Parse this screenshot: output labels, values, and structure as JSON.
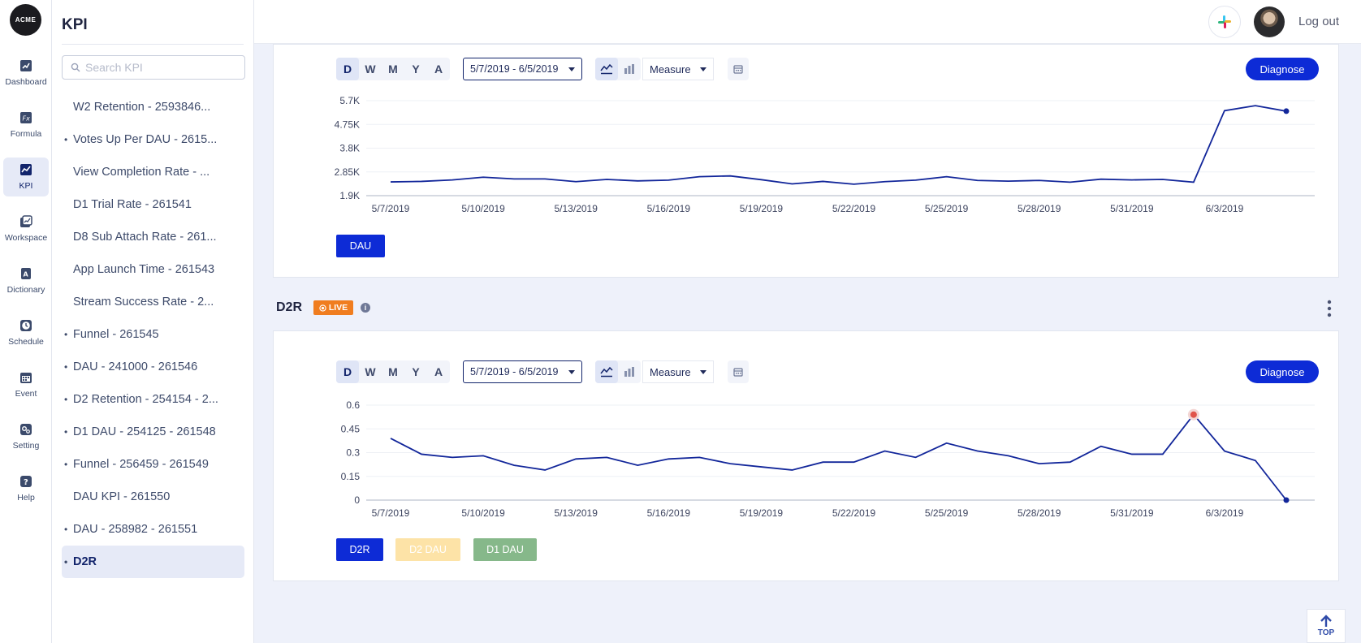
{
  "app": {
    "logo_text": "ACME",
    "nav": [
      {
        "label": "Dashboard",
        "icon": "dashboard-icon"
      },
      {
        "label": "Formula",
        "icon": "formula-icon"
      },
      {
        "label": "KPI",
        "icon": "kpi-icon",
        "active": true
      },
      {
        "label": "Workspace",
        "icon": "workspace-icon"
      },
      {
        "label": "Dictionary",
        "icon": "dictionary-icon"
      },
      {
        "label": "Schedule",
        "icon": "clock-icon"
      },
      {
        "label": "Event",
        "icon": "calendar-icon"
      },
      {
        "label": "Setting",
        "icon": "settings-icon"
      },
      {
        "label": "Help",
        "icon": "help-icon"
      }
    ]
  },
  "kpi_panel": {
    "title": "KPI",
    "search_placeholder": "Search KPI",
    "items": [
      {
        "label": "W2 Retention - 2593846...",
        "dot": false
      },
      {
        "label": "Votes Up Per DAU - 2615...",
        "dot": true
      },
      {
        "label": "View Completion Rate - ...",
        "dot": false
      },
      {
        "label": "D1 Trial Rate - 261541",
        "dot": false
      },
      {
        "label": "D8 Sub Attach Rate - 261...",
        "dot": false
      },
      {
        "label": "App Launch Time - 261543",
        "dot": false
      },
      {
        "label": "Stream Success Rate - 2...",
        "dot": false
      },
      {
        "label": "Funnel - 261545",
        "dot": true
      },
      {
        "label": "DAU - 241000 - 261546",
        "dot": true
      },
      {
        "label": "D2 Retention - 254154 - 2...",
        "dot": true
      },
      {
        "label": "D1 DAU - 254125 - 261548",
        "dot": true
      },
      {
        "label": "Funnel - 256459 - 261549",
        "dot": true
      },
      {
        "label": "DAU KPI - 261550",
        "dot": false
      },
      {
        "label": "DAU - 258982 - 261551",
        "dot": true
      },
      {
        "label": "D2R",
        "dot": true,
        "active": true
      }
    ]
  },
  "header": {
    "logout_label": "Log out"
  },
  "toolbar": {
    "periods": [
      "D",
      "W",
      "M",
      "Y",
      "A"
    ],
    "active_period": "D",
    "date_range": "5/7/2019 - 6/5/2019",
    "measure_label": "Measure",
    "diagnose_label": "Diagnose"
  },
  "section": {
    "title": "D2R",
    "badge": "LIVE",
    "info_glyph": "i"
  },
  "top_button_label": "TOP",
  "colors": {
    "accent": "#0d2bd6",
    "line": "#12269a",
    "highlight": "#e0544a",
    "live": "#f07d1f",
    "d2dau": "#fde3a7",
    "d1dau": "#86b88a"
  },
  "chart_data": [
    {
      "type": "line",
      "x": [
        "5/7/2019",
        "5/8/2019",
        "5/9/2019",
        "5/10/2019",
        "5/11/2019",
        "5/12/2019",
        "5/13/2019",
        "5/14/2019",
        "5/15/2019",
        "5/16/2019",
        "5/17/2019",
        "5/18/2019",
        "5/19/2019",
        "5/20/2019",
        "5/21/2019",
        "5/22/2019",
        "5/23/2019",
        "5/24/2019",
        "5/25/2019",
        "5/26/2019",
        "5/27/2019",
        "5/28/2019",
        "5/29/2019",
        "5/30/2019",
        "5/31/2019",
        "6/1/2019",
        "6/2/2019",
        "6/3/2019",
        "6/4/2019",
        "6/5/2019"
      ],
      "xticks": [
        "5/7/2019",
        "5/10/2019",
        "5/13/2019",
        "5/16/2019",
        "5/19/2019",
        "5/22/2019",
        "5/25/2019",
        "5/28/2019",
        "5/31/2019",
        "6/3/2019"
      ],
      "yticks": [
        "5.7K",
        "4.75K",
        "3.8K",
        "2.85K",
        "1.9K"
      ],
      "ytick_values": [
        5700,
        4750,
        3800,
        2850,
        1900
      ],
      "ylim": [
        1900,
        5700
      ],
      "series": [
        {
          "name": "DAU",
          "values": [
            2450,
            2470,
            2530,
            2640,
            2570,
            2570,
            2460,
            2550,
            2490,
            2520,
            2660,
            2690,
            2540,
            2370,
            2470,
            2360,
            2460,
            2520,
            2660,
            2510,
            2480,
            2510,
            2440,
            2560,
            2530,
            2550,
            2440,
            5300,
            5500,
            5280
          ]
        }
      ],
      "legend": [
        "DAU"
      ]
    },
    {
      "type": "line",
      "x": [
        "5/7/2019",
        "5/8/2019",
        "5/9/2019",
        "5/10/2019",
        "5/11/2019",
        "5/12/2019",
        "5/13/2019",
        "5/14/2019",
        "5/15/2019",
        "5/16/2019",
        "5/17/2019",
        "5/18/2019",
        "5/19/2019",
        "5/20/2019",
        "5/21/2019",
        "5/22/2019",
        "5/23/2019",
        "5/24/2019",
        "5/25/2019",
        "5/26/2019",
        "5/27/2019",
        "5/28/2019",
        "5/29/2019",
        "5/30/2019",
        "5/31/2019",
        "6/1/2019",
        "6/2/2019",
        "6/3/2019",
        "6/4/2019",
        "6/5/2019"
      ],
      "xticks": [
        "5/7/2019",
        "5/10/2019",
        "5/13/2019",
        "5/16/2019",
        "5/19/2019",
        "5/22/2019",
        "5/25/2019",
        "5/28/2019",
        "5/31/2019",
        "6/3/2019"
      ],
      "yticks": [
        "0.6",
        "0.45",
        "0.3",
        "0.15",
        "0"
      ],
      "ytick_values": [
        0.6,
        0.45,
        0.3,
        0.15,
        0
      ],
      "ylim": [
        0,
        0.6
      ],
      "series": [
        {
          "name": "D2R",
          "values": [
            0.39,
            0.29,
            0.27,
            0.28,
            0.22,
            0.19,
            0.26,
            0.27,
            0.22,
            0.26,
            0.27,
            0.23,
            0.21,
            0.19,
            0.24,
            0.24,
            0.31,
            0.27,
            0.36,
            0.31,
            0.28,
            0.23,
            0.24,
            0.34,
            0.29,
            0.29,
            0.54,
            0.31,
            0.25,
            0.0
          ]
        }
      ],
      "highlight_index": 26,
      "legend": [
        "D2R",
        "D2 DAU",
        "D1 DAU"
      ]
    }
  ]
}
